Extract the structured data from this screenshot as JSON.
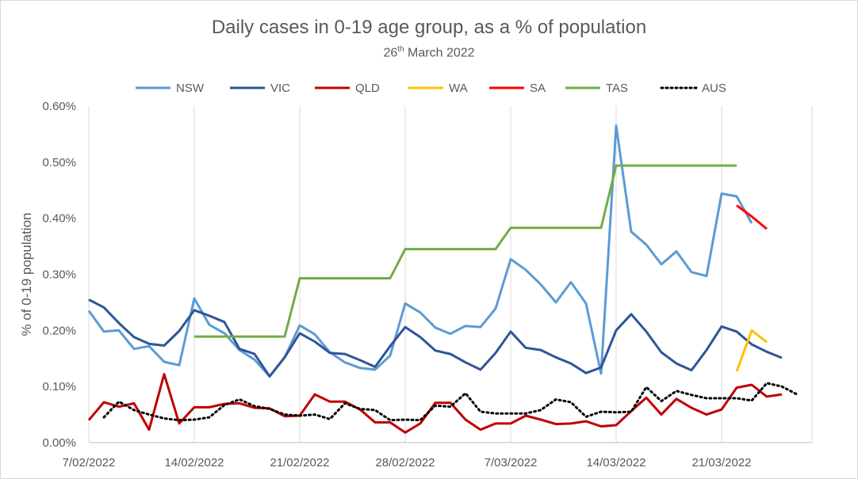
{
  "chart_data": {
    "type": "line",
    "title": "Daily cases in 0-19 age group, as a % of population",
    "subtitle_day": "26",
    "subtitle_suffix": "th",
    "subtitle_rest": " March 2022",
    "ylabel": "% of 0-19 population",
    "xlabel": "",
    "ylim": [
      0,
      0.6
    ],
    "yticks": [
      0,
      0.1,
      0.2,
      0.3,
      0.4,
      0.5,
      0.6
    ],
    "ytick_labels": [
      "0.00%",
      "0.10%",
      "0.20%",
      "0.30%",
      "0.40%",
      "0.50%",
      "0.60%"
    ],
    "x_range": [
      0,
      48
    ],
    "xticks": [
      0,
      7,
      14,
      21,
      28,
      35,
      42
    ],
    "xtick_labels": [
      "7/02/2022",
      "14/02/2022",
      "21/02/2022",
      "28/02/2022",
      "7/03/2022",
      "14/03/2022",
      "21/03/2022"
    ],
    "grid": "vertical",
    "legend_position": "top",
    "series": [
      {
        "name": "NSW",
        "color": "#5b9bd5",
        "dash": "",
        "x_start": 0,
        "values": [
          0.235,
          0.198,
          0.2,
          0.167,
          0.172,
          0.144,
          0.138,
          0.257,
          0.21,
          0.195,
          0.165,
          0.148,
          0.118,
          0.152,
          0.209,
          0.193,
          0.161,
          0.143,
          0.133,
          0.13,
          0.155,
          0.248,
          0.232,
          0.205,
          0.194,
          0.208,
          0.206,
          0.239,
          0.327,
          0.308,
          0.282,
          0.25,
          0.286,
          0.248,
          0.123,
          0.565,
          0.376,
          0.353,
          0.318,
          0.341,
          0.304,
          0.297,
          0.444,
          0.439,
          0.391
        ]
      },
      {
        "name": "VIC",
        "color": "#2f5597",
        "dash": "",
        "x_start": 0,
        "values": [
          0.255,
          0.241,
          0.213,
          0.188,
          0.176,
          0.173,
          0.199,
          0.236,
          0.226,
          0.215,
          0.167,
          0.158,
          0.118,
          0.152,
          0.195,
          0.18,
          0.16,
          0.158,
          0.147,
          0.135,
          0.172,
          0.206,
          0.188,
          0.164,
          0.158,
          0.143,
          0.13,
          0.16,
          0.198,
          0.169,
          0.165,
          0.152,
          0.141,
          0.124,
          0.134,
          0.2,
          0.229,
          0.198,
          0.161,
          0.141,
          0.129,
          0.165,
          0.207,
          0.198,
          0.175,
          0.162,
          0.151
        ]
      },
      {
        "name": "QLD",
        "color": "#c00000",
        "dash": "",
        "x_start": 0,
        "values": [
          0.04,
          0.072,
          0.064,
          0.07,
          0.023,
          0.122,
          0.034,
          0.063,
          0.063,
          0.069,
          0.07,
          0.062,
          0.061,
          0.047,
          0.048,
          0.086,
          0.073,
          0.073,
          0.059,
          0.036,
          0.036,
          0.018,
          0.034,
          0.071,
          0.071,
          0.041,
          0.023,
          0.034,
          0.034,
          0.048,
          0.041,
          0.033,
          0.034,
          0.038,
          0.029,
          0.031,
          0.056,
          0.08,
          0.05,
          0.078,
          0.062,
          0.05,
          0.059,
          0.098,
          0.103,
          0.082,
          0.086
        ]
      },
      {
        "name": "WA",
        "color": "#ffc000",
        "dash": "",
        "x_start": 43,
        "values": [
          0.127,
          0.2,
          0.179
        ]
      },
      {
        "name": "SA",
        "color": "#ff0000",
        "dash": "",
        "x_start": 43,
        "values": [
          0.423,
          0.403,
          0.381
        ]
      },
      {
        "name": "TAS",
        "color": "#70ad47",
        "dash": "",
        "x_start": 7,
        "values": [
          0.189,
          0.189,
          0.189,
          0.189,
          0.189,
          0.189,
          0.189,
          0.293,
          0.293,
          0.293,
          0.293,
          0.293,
          0.293,
          0.293,
          0.345,
          0.345,
          0.345,
          0.345,
          0.345,
          0.345,
          0.345,
          0.383,
          0.383,
          0.383,
          0.383,
          0.383,
          0.383,
          0.383,
          0.494,
          0.494,
          0.494,
          0.494,
          0.494,
          0.494,
          0.494,
          0.494,
          0.494
        ]
      },
      {
        "name": "AUS",
        "color": "#000000",
        "dash": "2,4",
        "x_start": 1,
        "values": [
          0.045,
          0.073,
          0.058,
          0.05,
          0.043,
          0.04,
          0.041,
          0.045,
          0.067,
          0.077,
          0.065,
          0.06,
          0.05,
          0.048,
          0.05,
          0.042,
          0.07,
          0.06,
          0.058,
          0.04,
          0.041,
          0.04,
          0.066,
          0.064,
          0.088,
          0.055,
          0.052,
          0.052,
          0.052,
          0.058,
          0.077,
          0.072,
          0.046,
          0.055,
          0.054,
          0.055,
          0.099,
          0.074,
          0.092,
          0.085,
          0.079,
          0.079,
          0.079,
          0.075,
          0.106,
          0.1,
          0.086
        ]
      }
    ]
  }
}
